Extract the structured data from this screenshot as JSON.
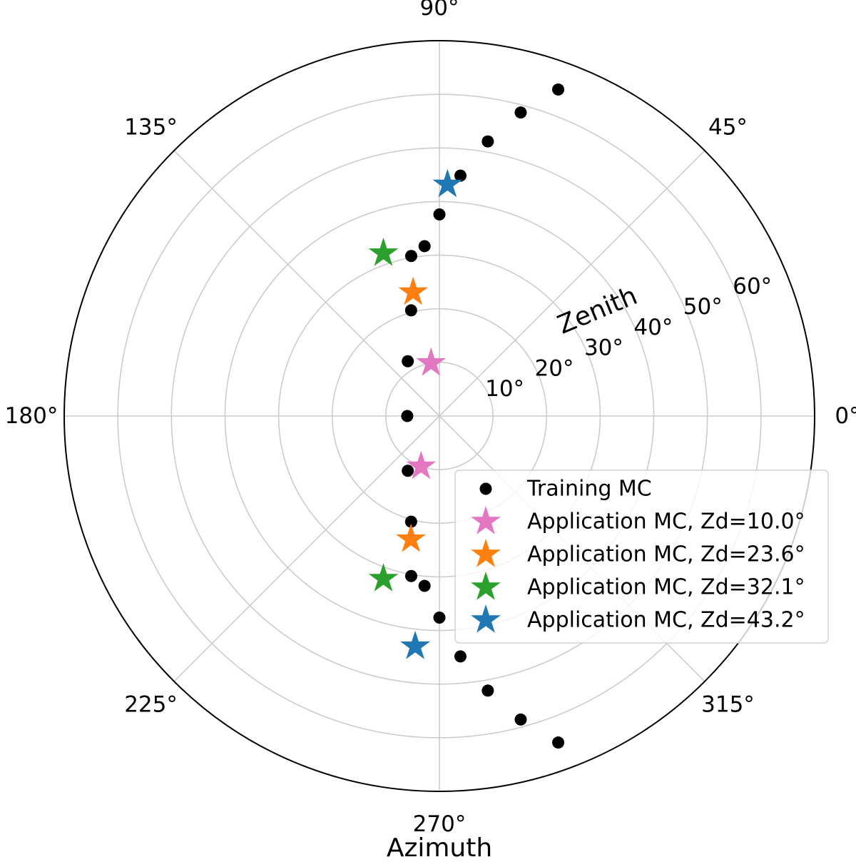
{
  "chart_data": {
    "type": "scatter",
    "projection": "polar",
    "theta_label": "Azimuth",
    "r_label": "Zenith",
    "theta_ticks": [
      0,
      45,
      90,
      135,
      180,
      225,
      270,
      315
    ],
    "theta_tick_labels": [
      "0°",
      "45°",
      "90°",
      "135°",
      "180°",
      "225°",
      "270°",
      "315°"
    ],
    "r_ticks": [
      10,
      20,
      30,
      40,
      50,
      60
    ],
    "r_tick_labels": [
      "10°",
      "20°",
      "30°",
      "40°",
      "50°",
      "60°"
    ],
    "r_max": 70,
    "grid": true,
    "legend_position": "lower-right",
    "series": [
      {
        "name": "Training MC",
        "marker": "circle",
        "color": "#000000",
        "points": [
          {
            "theta": 180,
            "r": 6.0
          },
          {
            "theta": 120,
            "r": 11.8
          },
          {
            "theta": 105,
            "r": 20.4
          },
          {
            "theta": 100,
            "r": 30.3
          },
          {
            "theta": 95,
            "r": 31.8
          },
          {
            "theta": 90,
            "r": 37.6
          },
          {
            "theta": 85,
            "r": 45.0
          },
          {
            "theta": 80,
            "r": 52.0
          },
          {
            "theta": 75,
            "r": 58.6
          },
          {
            "theta": 70,
            "r": 64.8
          },
          {
            "theta": 240,
            "r": 11.8
          },
          {
            "theta": 255,
            "r": 20.4
          },
          {
            "theta": 260,
            "r": 30.3
          },
          {
            "theta": 265,
            "r": 31.8
          },
          {
            "theta": 270,
            "r": 37.6
          },
          {
            "theta": 275,
            "r": 45.0
          },
          {
            "theta": 280,
            "r": 52.0
          },
          {
            "theta": 285,
            "r": 58.6
          },
          {
            "theta": 290,
            "r": 64.8
          }
        ]
      },
      {
        "name": "Application MC, Zd=10.0°",
        "marker": "star",
        "color": "#e377c2",
        "points": [
          {
            "theta": 99,
            "r": 10.0
          },
          {
            "theta": 250,
            "r": 10.0
          }
        ]
      },
      {
        "name": "Application MC, Zd=23.6°",
        "marker": "star",
        "color": "#ff7f0e",
        "points": [
          {
            "theta": 102,
            "r": 23.6
          },
          {
            "theta": 257,
            "r": 23.6
          }
        ]
      },
      {
        "name": "Application MC, Zd=32.1°",
        "marker": "star",
        "color": "#2ca02c",
        "points": [
          {
            "theta": 109,
            "r": 32.1
          },
          {
            "theta": 251,
            "r": 32.1
          }
        ]
      },
      {
        "name": "Application MC, Zd=43.2°",
        "marker": "star",
        "color": "#1f77b4",
        "points": [
          {
            "theta": 88,
            "r": 43.2
          },
          {
            "theta": 264,
            "r": 43.2
          }
        ]
      }
    ]
  }
}
